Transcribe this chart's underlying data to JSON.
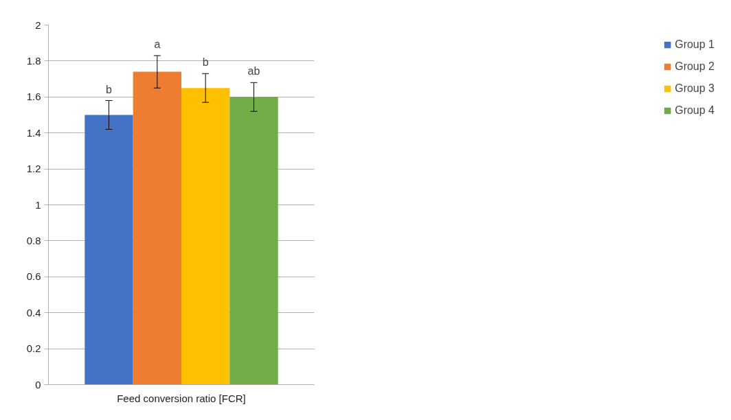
{
  "chart_data": {
    "type": "bar",
    "categories": [
      "Feed conversion ratio [FCR]"
    ],
    "series": [
      {
        "name": "Group 1",
        "color": "#4472c4",
        "values": [
          1.5
        ],
        "errors": [
          0.08
        ]
      },
      {
        "name": "Group 2",
        "color": "#ed7d31",
        "values": [
          1.74
        ],
        "errors": [
          0.09
        ]
      },
      {
        "name": "Group 3",
        "color": "#ffc000",
        "values": [
          1.65
        ],
        "errors": [
          0.08
        ]
      },
      {
        "name": "Group 4",
        "color": "#70ad47",
        "values": [
          1.6
        ],
        "errors": [
          0.08
        ]
      }
    ],
    "annotations": [
      "b",
      "a",
      "b",
      "ab"
    ],
    "ylim": [
      0,
      2
    ],
    "yticks": [
      0,
      0.2,
      0.4,
      0.6,
      0.8,
      1,
      1.2,
      1.4,
      1.6,
      1.8,
      2
    ],
    "grid": "y",
    "legend": "right"
  }
}
